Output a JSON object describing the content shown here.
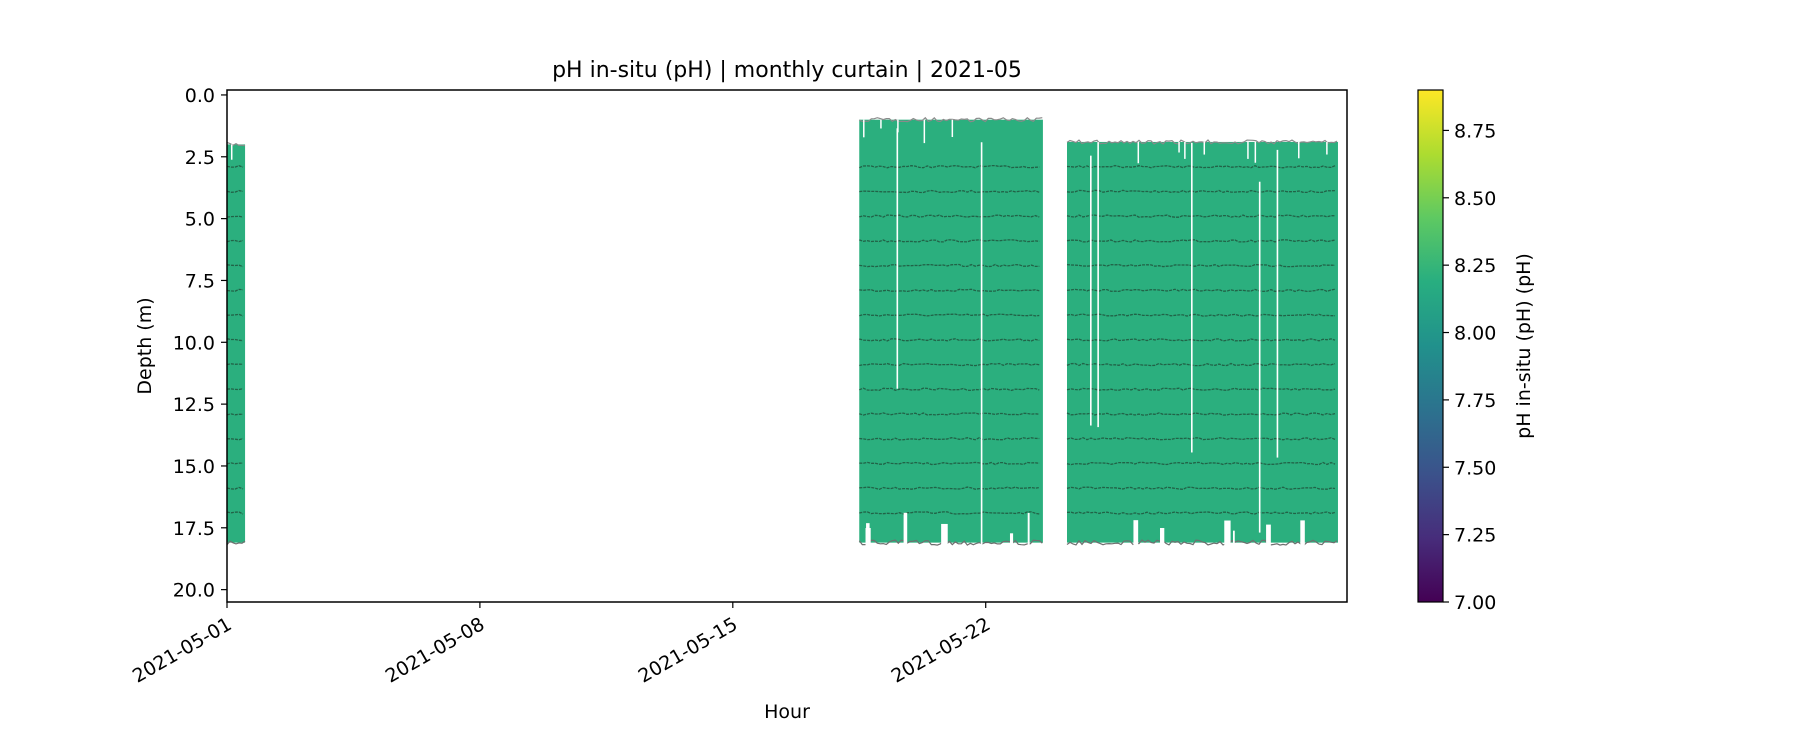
{
  "chart_data": {
    "type": "heatmap",
    "title": "pH in-situ (pH) | monthly curtain | 2021-05",
    "xlabel": "Hour",
    "ylabel": "Depth (m)",
    "x_ticks": [
      "2021-05-01",
      "2021-05-08",
      "2021-05-15",
      "2021-05-22"
    ],
    "x_range": [
      "2021-05-01",
      "2021-06-01"
    ],
    "y_ticks": [
      "0.0",
      "2.5",
      "5.0",
      "7.5",
      "10.0",
      "12.5",
      "15.0",
      "17.5",
      "20.0"
    ],
    "ylim": [
      20.5,
      -0.2
    ],
    "y_inverted": true,
    "colorbar": {
      "label": "pH in-situ (pH) (pH)",
      "colormap": "viridis",
      "range": [
        7.0,
        8.9
      ],
      "ticks": [
        "7.00",
        "7.25",
        "7.50",
        "7.75",
        "8.00",
        "8.25",
        "8.50",
        "8.75"
      ]
    },
    "grid": false,
    "data_blocks": [
      {
        "start": "2021-05-01",
        "end": "2021-05-01T12:00",
        "depth_top": 2.0,
        "depth_bottom": 18.1,
        "value": 8.2
      },
      {
        "start": "2021-05-18T12:00",
        "end": "2021-05-23T14:00",
        "depth_top": 1.0,
        "depth_bottom": 18.1,
        "value": 8.2
      },
      {
        "start": "2021-05-24T06:00",
        "end": "2021-05-31T18:00",
        "depth_top": 1.9,
        "depth_bottom": 18.1,
        "value": 8.2
      }
    ],
    "sensor_depths": [
      2.9,
      3.9,
      4.9,
      5.9,
      6.9,
      7.9,
      8.9,
      9.9,
      10.9,
      11.9,
      12.9,
      13.9,
      14.9,
      15.9,
      16.9
    ]
  }
}
